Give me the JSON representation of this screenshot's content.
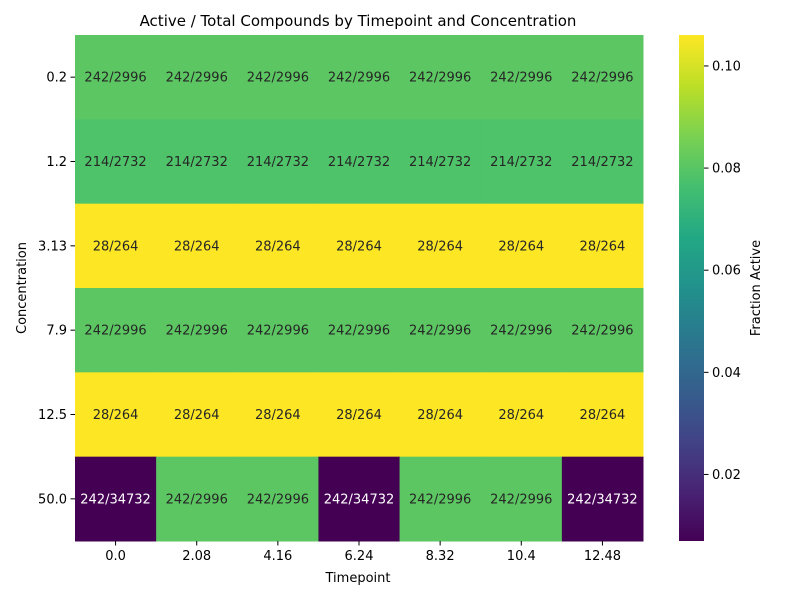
{
  "chart_data": {
    "type": "heatmap",
    "title": "Active / Total Compounds by Timepoint and Concentration",
    "xlabel": "Timepoint",
    "ylabel": "Concentration",
    "colorbar_label": "Fraction Active",
    "colormap": "viridis",
    "vmin": 0.00697,
    "vmax": 0.10606,
    "colorbar_ticks": [
      "0.02",
      "0.04",
      "0.06",
      "0.08",
      "0.10"
    ],
    "x_categories": [
      "0.0",
      "2.08",
      "4.16",
      "6.24",
      "8.32",
      "10.4",
      "12.48"
    ],
    "y_categories": [
      "0.2",
      "1.2",
      "3.13",
      "7.9",
      "12.5",
      "50.0"
    ],
    "cells": [
      [
        "242/2996",
        "242/2996",
        "242/2996",
        "242/2996",
        "242/2996",
        "242/2996",
        "242/2996"
      ],
      [
        "214/2732",
        "214/2732",
        "214/2732",
        "214/2732",
        "214/2732",
        "214/2732",
        "214/2732"
      ],
      [
        "28/264",
        "28/264",
        "28/264",
        "28/264",
        "28/264",
        "28/264",
        "28/264"
      ],
      [
        "242/2996",
        "242/2996",
        "242/2996",
        "242/2996",
        "242/2996",
        "242/2996",
        "242/2996"
      ],
      [
        "28/264",
        "28/264",
        "28/264",
        "28/264",
        "28/264",
        "28/264",
        "28/264"
      ],
      [
        "242/34732",
        "242/2996",
        "242/2996",
        "242/34732",
        "242/2996",
        "242/2996",
        "242/34732"
      ]
    ],
    "values": [
      [
        0.0808,
        0.0808,
        0.0808,
        0.0808,
        0.0808,
        0.0808,
        0.0808
      ],
      [
        0.0783,
        0.0783,
        0.0783,
        0.0783,
        0.0783,
        0.0783,
        0.0783
      ],
      [
        0.1061,
        0.1061,
        0.1061,
        0.1061,
        0.1061,
        0.1061,
        0.1061
      ],
      [
        0.0808,
        0.0808,
        0.0808,
        0.0808,
        0.0808,
        0.0808,
        0.0808
      ],
      [
        0.1061,
        0.1061,
        0.1061,
        0.1061,
        0.1061,
        0.1061,
        0.1061
      ],
      [
        0.007,
        0.0808,
        0.0808,
        0.007,
        0.0808,
        0.0808,
        0.007
      ]
    ]
  }
}
